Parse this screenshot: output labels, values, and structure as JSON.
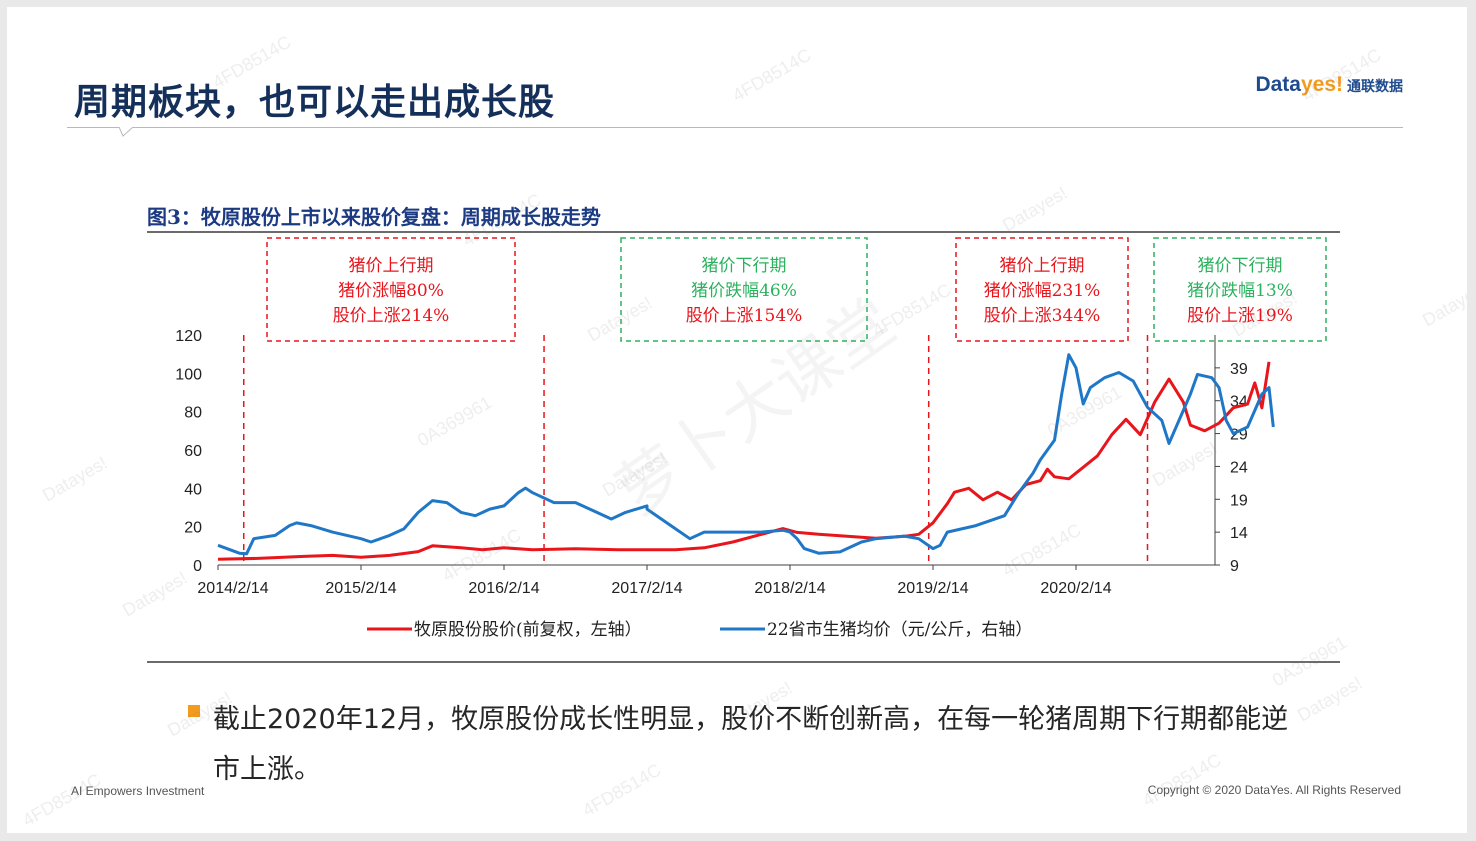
{
  "slide": {
    "title": "周期板块，也可以走出成长股",
    "logo": {
      "part1": "Data",
      "part2": "yes!",
      "part3": "通联数据"
    },
    "figure_title": "图3：牧原股份上市以来股价复盘：周期成长股走势",
    "bullet_text": "截止2020年12月，牧原股份成长性明显，股价不断创新高，在每一轮猪周期下行期都能逆市上涨。",
    "footer_left": "AI Empowers Investment",
    "footer_right": "Copyright © 2020 DataYes. All Rights Reserved",
    "accent_color": "#f29b1d",
    "title_color": "#14305a"
  },
  "watermarks": [
    "Datayes!",
    "4FD8514C",
    "0A369961",
    "萝卜大课堂"
  ],
  "chart_data": {
    "type": "line",
    "x_tick_labels": [
      "2014/2/14",
      "2015/2/14",
      "2016/2/14",
      "2017/2/14",
      "2018/2/14",
      "2019/2/14",
      "2020/2/14"
    ],
    "x_ticks": [
      0,
      1,
      2,
      3,
      4,
      5,
      6
    ],
    "xlim": [
      0,
      6.9
    ],
    "y_left": {
      "ticks": [
        0,
        20,
        40,
        60,
        80,
        100,
        120
      ],
      "range": [
        0,
        120
      ]
    },
    "y_right": {
      "ticks": [
        9,
        14,
        19,
        24,
        29,
        34,
        39
      ],
      "range": [
        9,
        44
      ]
    },
    "grid": false,
    "legend_position": "bottom",
    "series": [
      {
        "name": "牧原股份股价(前复权，左轴）",
        "axis": "left",
        "color": "#e8151b",
        "points": [
          [
            0,
            3
          ],
          [
            0.3,
            3.5
          ],
          [
            0.6,
            4.5
          ],
          [
            0.8,
            5
          ],
          [
            1,
            4
          ],
          [
            1.2,
            5
          ],
          [
            1.4,
            7
          ],
          [
            1.5,
            10
          ],
          [
            1.7,
            9
          ],
          [
            1.85,
            8
          ],
          [
            2,
            9
          ],
          [
            2.2,
            8
          ],
          [
            2.5,
            8.5
          ],
          [
            2.8,
            8
          ],
          [
            3,
            8
          ],
          [
            3.2,
            8
          ],
          [
            3.4,
            9
          ],
          [
            3.6,
            12
          ],
          [
            3.8,
            16
          ],
          [
            3.95,
            19
          ],
          [
            4.05,
            17
          ],
          [
            4.2,
            16
          ],
          [
            4.4,
            15
          ],
          [
            4.6,
            14
          ],
          [
            4.8,
            15
          ],
          [
            4.9,
            16
          ],
          [
            5,
            22
          ],
          [
            5.1,
            32
          ],
          [
            5.15,
            38
          ],
          [
            5.25,
            40
          ],
          [
            5.35,
            34
          ],
          [
            5.45,
            38
          ],
          [
            5.55,
            34
          ],
          [
            5.65,
            42
          ],
          [
            5.75,
            44
          ],
          [
            5.8,
            50
          ],
          [
            5.85,
            46
          ],
          [
            5.95,
            45
          ],
          [
            6.05,
            51
          ],
          [
            6.15,
            57
          ],
          [
            6.25,
            68
          ],
          [
            6.35,
            76
          ],
          [
            6.45,
            68
          ],
          [
            6.55,
            85
          ],
          [
            6.65,
            97
          ],
          [
            6.75,
            85
          ],
          [
            6.8,
            73
          ],
          [
            6.9,
            70
          ],
          [
            7,
            74
          ],
          [
            7.1,
            82
          ],
          [
            7.2,
            84
          ],
          [
            7.25,
            95
          ],
          [
            7.3,
            82
          ],
          [
            7.35,
            106
          ]
        ]
      },
      {
        "name": "22省市生猪均价（元/公斤，右轴）",
        "axis": "right",
        "color": "#1f77c7",
        "points": [
          [
            0,
            12
          ],
          [
            0.15,
            10.8
          ],
          [
            0.2,
            10.7
          ],
          [
            0.25,
            13
          ],
          [
            0.4,
            13.5
          ],
          [
            0.5,
            15
          ],
          [
            0.55,
            15.4
          ],
          [
            0.65,
            15
          ],
          [
            0.8,
            14
          ],
          [
            1,
            13
          ],
          [
            1.07,
            12.5
          ],
          [
            1.2,
            13.5
          ],
          [
            1.3,
            14.5
          ],
          [
            1.4,
            17
          ],
          [
            1.5,
            18.8
          ],
          [
            1.6,
            18.5
          ],
          [
            1.7,
            17
          ],
          [
            1.8,
            16.5
          ],
          [
            1.9,
            17.5
          ],
          [
            2,
            18
          ],
          [
            2.1,
            20
          ],
          [
            2.15,
            20.7
          ],
          [
            2.2,
            20
          ],
          [
            2.35,
            18.5
          ],
          [
            2.5,
            18.5
          ],
          [
            2.6,
            17.5
          ],
          [
            2.75,
            16
          ],
          [
            2.85,
            17
          ],
          [
            3,
            18
          ],
          [
            3,
            17.5
          ],
          [
            3.1,
            16
          ],
          [
            3.2,
            14.5
          ],
          [
            3.3,
            13
          ],
          [
            3.4,
            14
          ],
          [
            3.6,
            14
          ],
          [
            3.8,
            14
          ],
          [
            3.95,
            14.3
          ],
          [
            4,
            14
          ],
          [
            4.05,
            13
          ],
          [
            4.1,
            11.5
          ],
          [
            4.2,
            10.8
          ],
          [
            4.35,
            11
          ],
          [
            4.5,
            12.5
          ],
          [
            4.6,
            13
          ],
          [
            4.8,
            13.4
          ],
          [
            4.9,
            13
          ],
          [
            5,
            11.5
          ],
          [
            5.05,
            12
          ],
          [
            5.1,
            14
          ],
          [
            5.3,
            15
          ],
          [
            5.5,
            16.5
          ],
          [
            5.6,
            20
          ],
          [
            5.7,
            23
          ],
          [
            5.75,
            25
          ],
          [
            5.85,
            28
          ],
          [
            5.9,
            35
          ],
          [
            5.95,
            41
          ],
          [
            6,
            39
          ],
          [
            6.05,
            33.5
          ],
          [
            6.1,
            36
          ],
          [
            6.2,
            37.5
          ],
          [
            6.3,
            38.3
          ],
          [
            6.4,
            37
          ],
          [
            6.5,
            33
          ],
          [
            6.6,
            31
          ],
          [
            6.65,
            27.5
          ],
          [
            6.72,
            31
          ],
          [
            6.8,
            35
          ],
          [
            6.85,
            38
          ],
          [
            6.95,
            37.5
          ],
          [
            7,
            36
          ],
          [
            7.05,
            31
          ],
          [
            7.1,
            29
          ],
          [
            7.2,
            30
          ],
          [
            7.3,
            35
          ],
          [
            7.35,
            36
          ],
          [
            7.38,
            30
          ]
        ]
      }
    ],
    "annotations": [
      {
        "x_from": 0.18,
        "x_to": 2.28,
        "style": "red",
        "lines": [
          "猪价上行期",
          "猪价涨幅80%",
          "股价上涨214%"
        ]
      },
      {
        "x_from": 2.28,
        "x_to": 4.97,
        "style": "green",
        "lines": [
          "猪价下行期",
          "猪价跌幅46%",
          "股价上涨154%"
        ]
      },
      {
        "x_from": 4.97,
        "x_to": 6.5,
        "style": "red",
        "lines": [
          "猪价上行期",
          "猪价涨幅231%",
          "股价上涨344%"
        ]
      },
      {
        "x_from": 6.5,
        "x_to": 7.2,
        "style": "green",
        "lines": [
          "猪价下行期",
          "猪价跌幅13%",
          "股价上涨19%"
        ]
      }
    ],
    "divider_x": [
      0.18,
      2.28,
      4.97,
      6.5
    ]
  }
}
